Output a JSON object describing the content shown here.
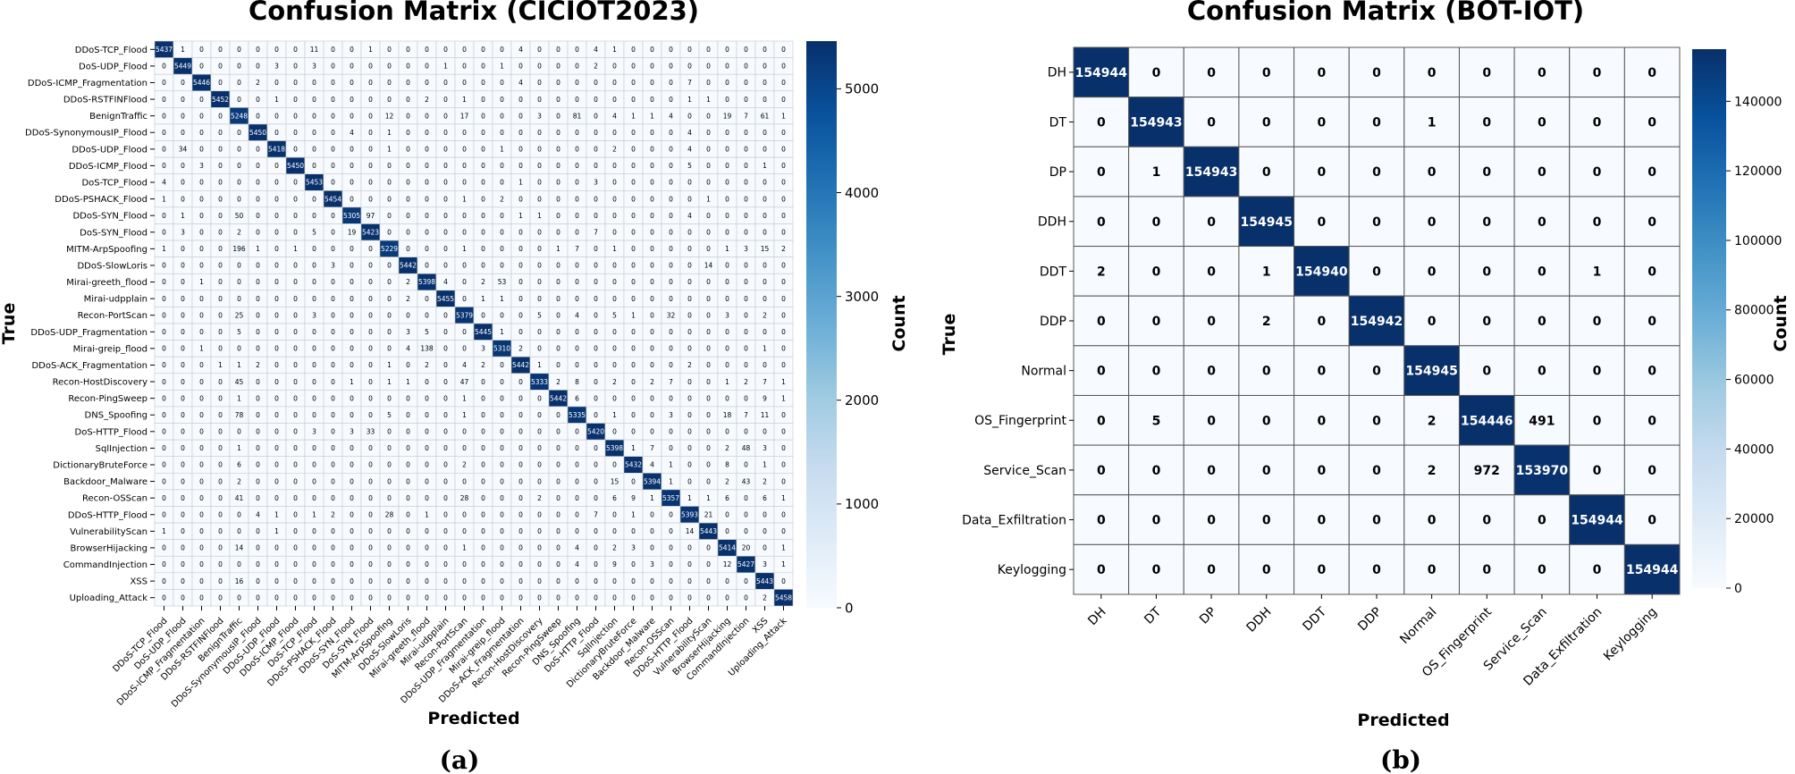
{
  "colors": {
    "low": "#f7fbff",
    "high": "#08306b",
    "grid": "#c8c8c8",
    "grid_b": "#555555"
  },
  "chart_data": [
    {
      "type": "heatmap",
      "title": "Confusion Matrix (CICIOT2023)",
      "panel_label": "(a)",
      "xlabel": "Predicted",
      "ylabel": "True",
      "colorbar_label": "Count",
      "vmin": 0,
      "vmax": 5460,
      "colorbar_ticks": [
        0,
        1000,
        2000,
        3000,
        4000,
        5000
      ],
      "labels": [
        "DDoS-TCP_Flood",
        "DoS-UDP_Flood",
        "DDoS-ICMP_Fragmentation",
        "DDoS-RSTFINFlood",
        "BenignTraffic",
        "DDoS-SynonymousIP_Flood",
        "DDoS-UDP_Flood",
        "DDoS-ICMP_Flood",
        "DoS-TCP_Flood",
        "DDoS-PSHACK_Flood",
        "DDoS-SYN_Flood",
        "DoS-SYN_Flood",
        "MITM-ArpSpoofing",
        "DDoS-SlowLoris",
        "Mirai-greeth_flood",
        "Mirai-udpplain",
        "Recon-PortScan",
        "DDoS-UDP_Fragmentation",
        "Mirai-greip_flood",
        "DDoS-ACK_Fragmentation",
        "Recon-HostDiscovery",
        "Recon-PingSweep",
        "DNS_Spoofing",
        "DoS-HTTP_Flood",
        "SqlInjection",
        "DictionaryBruteForce",
        "Backdoor_Malware",
        "Recon-OSScan",
        "DDoS-HTTP_Flood",
        "VulnerabilityScan",
        "BrowserHijacking",
        "CommandInjection",
        "XSS",
        "Uploading_Attack"
      ],
      "matrix": [
        [
          5437,
          1,
          0,
          0,
          0,
          0,
          0,
          0,
          11,
          0,
          0,
          1,
          0,
          0,
          0,
          0,
          0,
          0,
          0,
          4,
          0,
          0,
          0,
          4,
          1,
          0,
          0,
          0,
          0,
          0,
          0,
          0,
          0,
          0
        ],
        [
          0,
          5449,
          0,
          0,
          0,
          0,
          3,
          0,
          3,
          0,
          0,
          0,
          0,
          0,
          0,
          1,
          0,
          0,
          1,
          0,
          0,
          0,
          0,
          2,
          0,
          0,
          0,
          0,
          0,
          0,
          0,
          0,
          0,
          0
        ],
        [
          0,
          0,
          5446,
          0,
          0,
          2,
          0,
          0,
          0,
          0,
          0,
          0,
          0,
          0,
          0,
          0,
          0,
          0,
          0,
          4,
          0,
          0,
          0,
          0,
          0,
          0,
          0,
          0,
          7,
          0,
          0,
          0,
          0,
          0
        ],
        [
          0,
          0,
          0,
          5452,
          0,
          0,
          1,
          0,
          0,
          0,
          0,
          0,
          0,
          0,
          2,
          0,
          1,
          0,
          0,
          0,
          0,
          0,
          0,
          0,
          0,
          0,
          0,
          0,
          1,
          1,
          0,
          0,
          0,
          0
        ],
        [
          0,
          0,
          0,
          0,
          5248,
          0,
          0,
          0,
          0,
          0,
          0,
          0,
          12,
          0,
          0,
          0,
          17,
          0,
          0,
          0,
          3,
          0,
          81,
          0,
          4,
          1,
          1,
          4,
          0,
          0,
          19,
          7,
          61,
          1
        ],
        [
          0,
          0,
          0,
          0,
          0,
          5450,
          0,
          0,
          0,
          0,
          4,
          0,
          1,
          0,
          0,
          0,
          0,
          0,
          0,
          0,
          0,
          0,
          0,
          0,
          0,
          0,
          0,
          0,
          4,
          0,
          0,
          0,
          0,
          0
        ],
        [
          0,
          34,
          0,
          0,
          0,
          0,
          5418,
          0,
          0,
          0,
          0,
          0,
          1,
          0,
          0,
          0,
          0,
          0,
          1,
          0,
          0,
          0,
          0,
          0,
          2,
          0,
          0,
          0,
          4,
          0,
          0,
          0,
          0,
          0
        ],
        [
          0,
          0,
          3,
          0,
          0,
          0,
          0,
          5450,
          0,
          0,
          0,
          0,
          0,
          0,
          0,
          0,
          0,
          0,
          0,
          0,
          0,
          0,
          0,
          0,
          0,
          0,
          0,
          0,
          5,
          0,
          0,
          0,
          1,
          0
        ],
        [
          4,
          0,
          0,
          0,
          0,
          0,
          0,
          0,
          5453,
          0,
          0,
          0,
          0,
          0,
          0,
          0,
          0,
          0,
          0,
          1,
          0,
          0,
          0,
          3,
          0,
          0,
          0,
          0,
          0,
          0,
          0,
          0,
          0,
          0
        ],
        [
          1,
          0,
          0,
          0,
          0,
          0,
          0,
          0,
          0,
          5454,
          0,
          0,
          0,
          0,
          0,
          0,
          1,
          0,
          2,
          0,
          0,
          0,
          0,
          0,
          0,
          0,
          0,
          0,
          0,
          1,
          0,
          0,
          0,
          0
        ],
        [
          0,
          1,
          0,
          0,
          50,
          0,
          0,
          0,
          0,
          0,
          5305,
          97,
          0,
          0,
          0,
          0,
          0,
          0,
          0,
          1,
          1,
          0,
          0,
          0,
          0,
          0,
          0,
          0,
          4,
          0,
          0,
          0,
          0,
          0
        ],
        [
          0,
          3,
          0,
          0,
          2,
          0,
          0,
          0,
          5,
          0,
          19,
          5423,
          0,
          0,
          0,
          0,
          0,
          0,
          0,
          0,
          0,
          0,
          0,
          7,
          0,
          0,
          0,
          0,
          0,
          0,
          0,
          0,
          0,
          0
        ],
        [
          1,
          0,
          0,
          0,
          196,
          1,
          0,
          1,
          0,
          0,
          0,
          0,
          5229,
          0,
          0,
          0,
          1,
          0,
          0,
          0,
          0,
          1,
          7,
          0,
          1,
          0,
          0,
          0,
          0,
          0,
          1,
          3,
          15,
          2
        ],
        [
          0,
          0,
          0,
          0,
          0,
          0,
          0,
          0,
          0,
          3,
          0,
          0,
          0,
          5442,
          0,
          0,
          0,
          0,
          0,
          0,
          0,
          0,
          0,
          0,
          0,
          0,
          0,
          0,
          0,
          14,
          0,
          0,
          0,
          0
        ],
        [
          0,
          0,
          1,
          0,
          0,
          0,
          0,
          0,
          0,
          0,
          0,
          0,
          0,
          2,
          5398,
          4,
          0,
          2,
          53,
          0,
          0,
          0,
          0,
          0,
          0,
          0,
          0,
          0,
          0,
          0,
          0,
          0,
          0,
          0
        ],
        [
          0,
          0,
          0,
          0,
          0,
          0,
          0,
          0,
          0,
          0,
          0,
          0,
          0,
          2,
          0,
          5455,
          0,
          1,
          1,
          0,
          0,
          0,
          0,
          0,
          0,
          0,
          0,
          0,
          0,
          0,
          0,
          0,
          0,
          0
        ],
        [
          0,
          0,
          0,
          0,
          25,
          0,
          0,
          0,
          3,
          0,
          0,
          0,
          0,
          0,
          0,
          0,
          5379,
          0,
          0,
          0,
          5,
          0,
          4,
          0,
          5,
          1,
          0,
          32,
          0,
          0,
          3,
          0,
          2,
          0
        ],
        [
          0,
          0,
          0,
          0,
          5,
          0,
          0,
          0,
          0,
          0,
          0,
          0,
          0,
          3,
          5,
          0,
          0,
          5445,
          1,
          0,
          0,
          0,
          0,
          0,
          0,
          0,
          0,
          0,
          0,
          0,
          0,
          0,
          0,
          0
        ],
        [
          0,
          0,
          1,
          0,
          0,
          0,
          0,
          0,
          0,
          0,
          0,
          0,
          0,
          4,
          138,
          0,
          0,
          3,
          5310,
          2,
          0,
          0,
          0,
          0,
          0,
          0,
          0,
          0,
          0,
          0,
          0,
          0,
          1,
          0
        ],
        [
          0,
          0,
          0,
          1,
          1,
          2,
          0,
          0,
          0,
          0,
          0,
          0,
          1,
          0,
          2,
          0,
          4,
          2,
          0,
          5442,
          1,
          0,
          0,
          0,
          0,
          0,
          0,
          0,
          2,
          0,
          0,
          0,
          0,
          0
        ],
        [
          0,
          0,
          0,
          0,
          45,
          0,
          0,
          0,
          0,
          0,
          1,
          0,
          1,
          1,
          0,
          0,
          47,
          0,
          0,
          0,
          5333,
          2,
          8,
          0,
          2,
          0,
          2,
          7,
          0,
          0,
          1,
          2,
          7,
          1
        ],
        [
          0,
          0,
          0,
          0,
          1,
          0,
          0,
          0,
          0,
          0,
          0,
          0,
          0,
          0,
          0,
          0,
          1,
          0,
          0,
          0,
          0,
          5442,
          6,
          0,
          0,
          0,
          0,
          0,
          0,
          0,
          0,
          0,
          9,
          1
        ],
        [
          0,
          0,
          0,
          0,
          78,
          0,
          0,
          0,
          0,
          0,
          0,
          0,
          5,
          0,
          0,
          0,
          1,
          0,
          0,
          0,
          0,
          0,
          5335,
          0,
          1,
          0,
          0,
          3,
          0,
          0,
          18,
          7,
          11,
          0
        ],
        [
          0,
          0,
          0,
          0,
          0,
          0,
          0,
          0,
          3,
          0,
          3,
          33,
          0,
          0,
          0,
          0,
          0,
          0,
          0,
          0,
          0,
          0,
          0,
          5420,
          0,
          0,
          0,
          0,
          0,
          0,
          0,
          0,
          0,
          0
        ],
        [
          0,
          0,
          0,
          0,
          1,
          0,
          0,
          0,
          0,
          0,
          0,
          0,
          0,
          0,
          0,
          0,
          0,
          0,
          0,
          0,
          0,
          0,
          0,
          0,
          5398,
          1,
          7,
          0,
          0,
          0,
          2,
          48,
          3,
          0
        ],
        [
          0,
          0,
          0,
          0,
          6,
          0,
          0,
          0,
          0,
          0,
          0,
          0,
          0,
          0,
          0,
          0,
          2,
          0,
          0,
          0,
          0,
          0,
          0,
          0,
          0,
          5432,
          4,
          1,
          0,
          0,
          8,
          0,
          1,
          0
        ],
        [
          0,
          0,
          0,
          0,
          2,
          0,
          0,
          0,
          0,
          0,
          0,
          0,
          0,
          0,
          0,
          0,
          0,
          0,
          0,
          0,
          0,
          0,
          0,
          0,
          15,
          0,
          5394,
          1,
          0,
          0,
          2,
          43,
          2,
          0
        ],
        [
          0,
          0,
          0,
          0,
          41,
          0,
          0,
          0,
          0,
          0,
          0,
          0,
          0,
          0,
          0,
          0,
          28,
          0,
          0,
          0,
          2,
          0,
          0,
          0,
          6,
          9,
          1,
          5357,
          1,
          1,
          6,
          0,
          6,
          1
        ],
        [
          0,
          0,
          0,
          0,
          0,
          4,
          1,
          0,
          1,
          2,
          0,
          0,
          28,
          0,
          1,
          0,
          0,
          0,
          0,
          0,
          0,
          0,
          0,
          7,
          0,
          1,
          0,
          0,
          5393,
          21,
          0,
          0,
          0,
          0
        ],
        [
          1,
          0,
          0,
          0,
          0,
          0,
          1,
          0,
          0,
          0,
          0,
          0,
          0,
          0,
          0,
          0,
          0,
          0,
          0,
          0,
          0,
          0,
          0,
          0,
          0,
          0,
          0,
          0,
          14,
          5443,
          0,
          0,
          0,
          0
        ],
        [
          0,
          0,
          0,
          0,
          14,
          0,
          0,
          0,
          0,
          0,
          0,
          0,
          0,
          0,
          0,
          0,
          1,
          0,
          0,
          0,
          0,
          0,
          4,
          0,
          2,
          3,
          0,
          0,
          0,
          0,
          5414,
          20,
          0,
          1
        ],
        [
          0,
          0,
          0,
          0,
          0,
          0,
          0,
          0,
          0,
          0,
          0,
          0,
          0,
          0,
          0,
          0,
          0,
          0,
          0,
          0,
          0,
          0,
          4,
          0,
          9,
          0,
          3,
          0,
          0,
          0,
          12,
          5427,
          3,
          1
        ],
        [
          0,
          0,
          0,
          0,
          16,
          0,
          0,
          0,
          0,
          0,
          0,
          0,
          0,
          0,
          0,
          0,
          0,
          0,
          0,
          0,
          0,
          0,
          0,
          0,
          0,
          0,
          0,
          0,
          0,
          0,
          0,
          0,
          5443,
          0
        ],
        [
          0,
          0,
          0,
          0,
          0,
          0,
          0,
          0,
          0,
          0,
          0,
          0,
          0,
          0,
          0,
          0,
          0,
          0,
          0,
          0,
          0,
          0,
          0,
          0,
          0,
          0,
          0,
          0,
          0,
          0,
          0,
          0,
          2,
          5458
        ]
      ]
    },
    {
      "type": "heatmap",
      "title": "Confusion Matrix (BOT-IOT)",
      "panel_label": "(b)",
      "xlabel": "Predicted",
      "ylabel": "True",
      "colorbar_label": "Count",
      "vmin": 0,
      "vmax": 155000,
      "colorbar_ticks": [
        0,
        20000,
        40000,
        60000,
        80000,
        100000,
        120000,
        140000
      ],
      "labels": [
        "DH",
        "DT",
        "DP",
        "DDH",
        "DDT",
        "DDP",
        "Normal",
        "OS_Fingerprint",
        "Service_Scan",
        "Data_Exfiltration",
        "Keylogging"
      ],
      "matrix": [
        [
          154944,
          0,
          0,
          0,
          0,
          0,
          0,
          0,
          0,
          0,
          0
        ],
        [
          0,
          154943,
          0,
          0,
          0,
          0,
          1,
          0,
          0,
          0,
          0
        ],
        [
          0,
          1,
          154943,
          0,
          0,
          0,
          0,
          0,
          0,
          0,
          0
        ],
        [
          0,
          0,
          0,
          154945,
          0,
          0,
          0,
          0,
          0,
          0,
          0
        ],
        [
          2,
          0,
          0,
          1,
          154940,
          0,
          0,
          0,
          0,
          1,
          0
        ],
        [
          0,
          0,
          0,
          2,
          0,
          154942,
          0,
          0,
          0,
          0,
          0
        ],
        [
          0,
          0,
          0,
          0,
          0,
          0,
          154945,
          0,
          0,
          0,
          0
        ],
        [
          0,
          5,
          0,
          0,
          0,
          0,
          2,
          154446,
          491,
          0,
          0
        ],
        [
          0,
          0,
          0,
          0,
          0,
          0,
          2,
          972,
          153970,
          0,
          0
        ],
        [
          0,
          0,
          0,
          0,
          0,
          0,
          0,
          0,
          0,
          154944,
          0
        ],
        [
          0,
          0,
          0,
          0,
          0,
          0,
          0,
          0,
          0,
          0,
          154944
        ]
      ]
    }
  ]
}
